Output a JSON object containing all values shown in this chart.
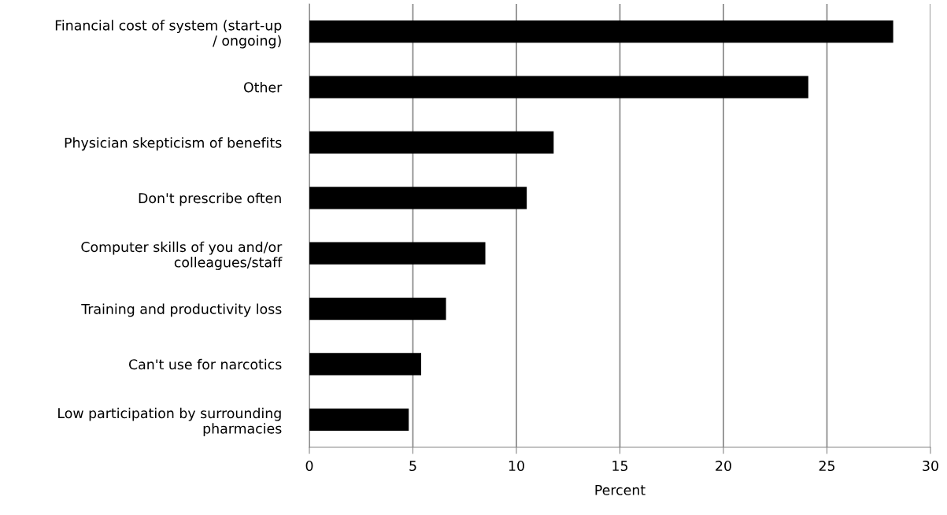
{
  "chart_data": {
    "type": "bar",
    "orientation": "horizontal",
    "xlabel": "Percent",
    "categories": [
      "Financial cost of system (start-up\n/ ongoing)",
      "Other",
      "Physician skepticism of benefits",
      "Don't prescribe often",
      "Computer skills of you and/or\ncolleagues/staff",
      "Training and productivity loss",
      "Can't use for narcotics",
      "Low participation by surrounding\npharmacies"
    ],
    "values": [
      28.2,
      24.1,
      11.8,
      10.5,
      8.5,
      6.6,
      5.4,
      4.8
    ],
    "color": "#000000",
    "xlim": [
      0,
      30
    ],
    "xticks": [
      0,
      5,
      10,
      15,
      20,
      25,
      30
    ],
    "grid": "x"
  }
}
